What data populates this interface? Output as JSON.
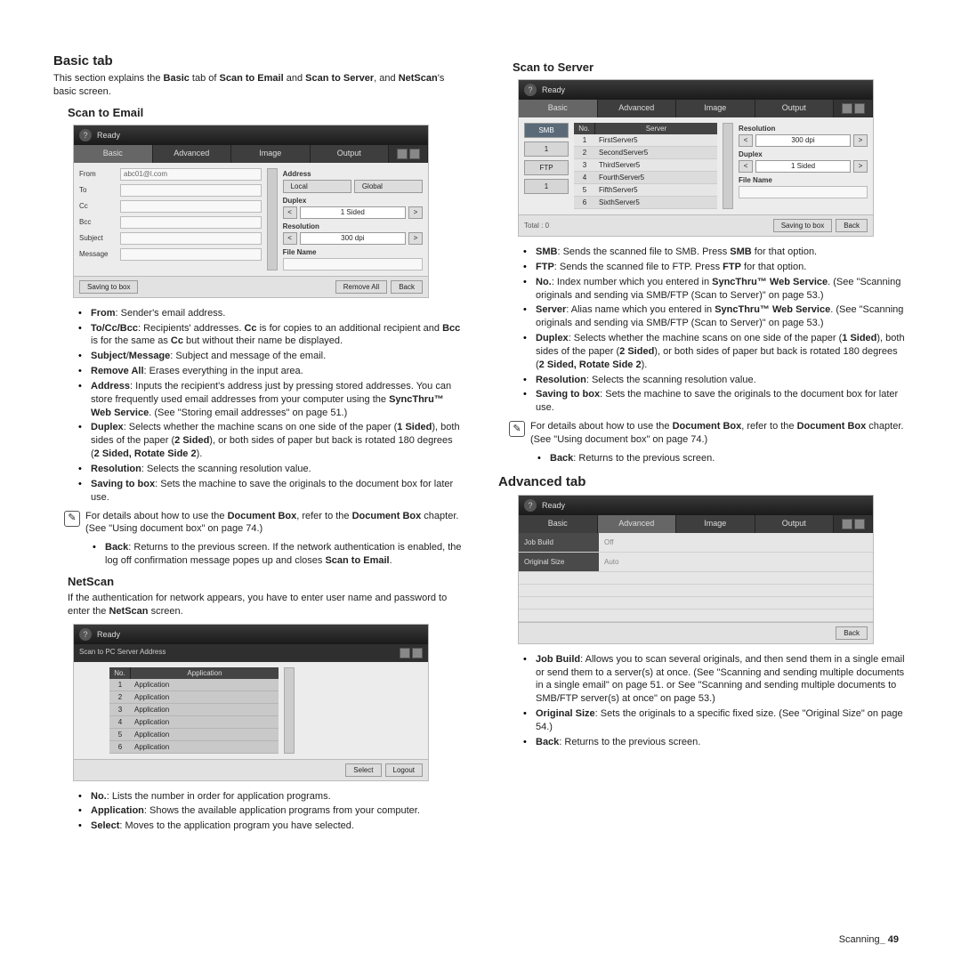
{
  "left": {
    "h2": "Basic tab",
    "intro": "This section explains the <b>Basic</b> tab of <b>Scan to Email</b> and <b>Scan to Server</b>, and <b>NetScan</b>'s basic screen.",
    "scanEmail": {
      "h3": "Scan to Email",
      "mock": {
        "title": "Ready",
        "tabs": [
          "Basic",
          "Advanced",
          "Image",
          "Output"
        ],
        "fields": [
          "From",
          "To",
          "Cc",
          "Bcc",
          "Subject",
          "Message"
        ],
        "fromVal": "abc01@l.com",
        "right": {
          "address": "Address",
          "local": "Local",
          "global": "Global",
          "duplex": "Duplex",
          "resolution": "Resolution",
          "resVal": "300 dpi",
          "fileName": "File Name"
        },
        "footer": {
          "saving": "Saving to box",
          "remove": "Remove All",
          "back": "Back"
        }
      },
      "bullets": [
        "<b>From</b>: Sender's email address.",
        "<b>To/Cc/Bcc</b>: Recipients' addresses. <b>Cc</b> is for copies to an additional recipient and <b>Bcc</b> is for the same as <b>Cc</b> but without their name be displayed.",
        "<b>Subject</b>/<b>Message</b>: Subject and message of the email.",
        "<b>Remove All</b>: Erases everything in the input area.",
        "<b>Address</b>: Inputs the recipient's address just by pressing stored addresses. You can store frequently used email addresses from your computer using the <b>SyncThru™ Web Service</b>. (See \"Storing email addresses\" on page 51.)",
        "<b>Duplex</b>: Selects whether the machine scans on one side of the paper (<b>1 Sided</b>), both sides of the paper (<b>2 Sided</b>), or both sides of paper but back is rotated 180 degrees (<b>2 Sided, Rotate Side 2</b>).",
        "<b>Resolution</b>: Selects the scanning resolution value.",
        "<b>Saving to box</b>: Sets the machine to save the originals to the document box for later use."
      ],
      "note": "For details about how to use the <b>Document Box</b>, refer to the <b>Document Box</b> chapter. (See \"Using document box\" on page 74.)",
      "backBullet": "<b>Back</b>: Returns to the previous screen. If the network authentication is enabled, the log off confirmation message popes up and closes <b>Scan to Email</b>."
    },
    "netscan": {
      "h3": "NetScan",
      "intro": "If the authentication for network appears, you have to enter user name and password to enter the <b>NetScan</b> screen.",
      "mock": {
        "title": "Ready",
        "sub": "Scan to PC Server Address",
        "head": [
          "No.",
          "Application"
        ],
        "rows": [
          [
            "1",
            "Application"
          ],
          [
            "2",
            "Application"
          ],
          [
            "3",
            "Application"
          ],
          [
            "4",
            "Application"
          ],
          [
            "5",
            "Application"
          ],
          [
            "6",
            "Application"
          ]
        ],
        "footer": {
          "select": "Select",
          "logout": "Logout"
        }
      },
      "bullets": [
        "<b>No.</b>: Lists the number in order for application programs.",
        "<b>Application</b>: Shows the available application programs from your computer.",
        "<b>Select</b>: Moves to the application program you have selected."
      ]
    }
  },
  "right": {
    "scanServer": {
      "h3": "Scan to Server",
      "mock": {
        "title": "Ready",
        "tabs": [
          "Basic",
          "Advanced",
          "Image",
          "Output"
        ],
        "leftBtns": [
          "SMB",
          "1",
          "FTP",
          "1"
        ],
        "head": [
          "No.",
          "Server"
        ],
        "rows": [
          [
            "1",
            "FirstServer5"
          ],
          [
            "2",
            "SecondServer5"
          ],
          [
            "3",
            "ThirdServer5"
          ],
          [
            "4",
            "FourthServer5"
          ],
          [
            "5",
            "FifthServer5"
          ],
          [
            "6",
            "SixthServer5"
          ]
        ],
        "right": {
          "resolution": "Resolution",
          "resVal": "300 dpi",
          "duplex": "Duplex",
          "fileName": "File Name"
        },
        "footer": {
          "total": "Total : 0",
          "saving": "Saving to box",
          "back": "Back"
        }
      },
      "bullets": [
        "<b>SMB</b>: Sends the scanned file to SMB. Press <b>SMB</b> for that option.",
        "<b>FTP</b>: Sends the scanned file to FTP. Press <b>FTP</b> for that option.",
        "<b>No.</b>: Index number which you entered in <b>SyncThru™ Web Service</b>. (See \"Scanning originals and sending via SMB/FTP (Scan to Server)\" on page 53.)",
        "<b>Server</b>: Alias name which you entered in <b>SyncThru™ Web Service</b>. (See \"Scanning originals and sending via SMB/FTP (Scan to Server)\" on page 53.)",
        "<b>Duplex</b>: Selects whether the machine scans on one side of the paper (<b>1 Sided</b>), both sides of the paper (<b>2 Sided</b>), or both sides of paper but back is rotated 180 degrees (<b>2 Sided, Rotate Side 2</b>).",
        "<b>Resolution</b>: Selects the scanning resolution value.",
        "<b>Saving to box</b>: Sets the machine to save the originals to the document box for later use."
      ],
      "note": "For details about how to use the <b>Document Box</b>, refer to the <b>Document Box</b> chapter. (See \"Using document box\" on page 74.)",
      "backBullet": "<b>Back</b>: Returns to the previous screen."
    },
    "advanced": {
      "h2": "Advanced tab",
      "mock": {
        "title": "Ready",
        "tabs": [
          "Basic",
          "Advanced",
          "Image",
          "Output"
        ],
        "rows": [
          [
            "Job Build",
            "Off"
          ],
          [
            "Original Size",
            "Auto"
          ]
        ],
        "back": "Back"
      },
      "bullets": [
        "<b>Job Build</b>: Allows you to scan several originals, and then send them in a single email or send them to a server(s) at once. (See \"Scanning and sending multiple documents in a single email\" on page 51. or See \"Scanning and sending multiple documents to SMB/FTP server(s) at once\" on page 53.)",
        "<b>Original Size</b>: Sets the originals to a specific fixed size. (See \"Original Size\" on page 54.)",
        "<b>Back</b>: Returns to the previous screen."
      ]
    }
  },
  "footer": "Scanning<b>_ 49</b>"
}
